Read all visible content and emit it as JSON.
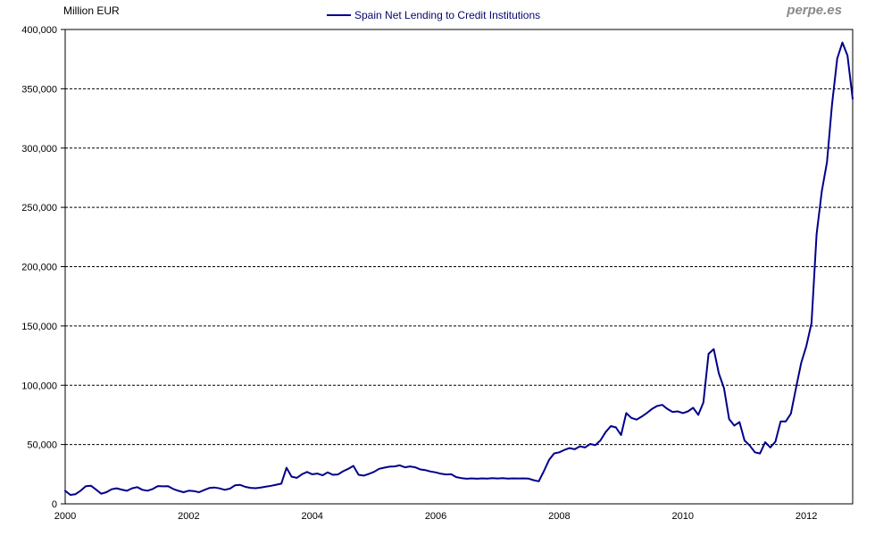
{
  "header": {
    "y_axis_title": "Million EUR",
    "legend_label": "Spain Net Lending to Credit Institutions",
    "watermark": "perpe.es"
  },
  "colors": {
    "line": "#00008B",
    "legend_text": "#06066E",
    "watermark_gray": "#8A8A8A",
    "axis_black": "#000000"
  },
  "chart_data": {
    "type": "line",
    "title": "Spain Net Lending to Credit Institutions",
    "ylabel": "Million EUR",
    "ylim": [
      0,
      400000
    ],
    "y_tick_interval": 50000,
    "y_tick_labels": [
      "0",
      "50,000",
      "100,000",
      "150,000",
      "200,000",
      "250,000",
      "300,000",
      "350,000",
      "400,000"
    ],
    "x_tick_labels": [
      "2000",
      "2002",
      "2004",
      "2006",
      "2008",
      "2010",
      "2012"
    ],
    "x_tick_interval_months": 24,
    "frequency": "monthly",
    "x_range": [
      "2000-01",
      "2012-10"
    ],
    "grid": "horizontal-dashed",
    "legend_position": "top-center",
    "line_color": "#00008B",
    "series": [
      {
        "name": "Spain Net Lending to Credit Institutions",
        "values": [
          11000,
          7500,
          8100,
          11100,
          14900,
          15300,
          12000,
          8500,
          9800,
          12300,
          13100,
          12000,
          11000,
          13100,
          14100,
          11800,
          11100,
          12500,
          15000,
          14800,
          14900,
          12500,
          11000,
          9800,
          11100,
          10800,
          9800,
          11600,
          13300,
          13800,
          13000,
          11800,
          12800,
          15600,
          16000,
          14300,
          13500,
          13200,
          13800,
          14500,
          15200,
          16100,
          17000,
          30400,
          22900,
          21900,
          24900,
          26900,
          24900,
          25500,
          24000,
          26500,
          24500,
          24800,
          27500,
          29500,
          32000,
          24500,
          23800,
          25200,
          27000,
          29500,
          30500,
          31300,
          31600,
          32500,
          30800,
          31600,
          30800,
          29000,
          28400,
          27300,
          26500,
          25400,
          24800,
          24900,
          22500,
          21700,
          21200,
          21500,
          21200,
          21500,
          21300,
          21600,
          21400,
          21600,
          21300,
          21500,
          21400,
          21500,
          21300,
          20000,
          19000,
          27500,
          37000,
          42500,
          43500,
          45500,
          47000,
          46000,
          48500,
          47500,
          50500,
          49500,
          53500,
          60500,
          65500,
          64500,
          58000,
          76500,
          72500,
          71000,
          73500,
          76500,
          80000,
          82500,
          83500,
          80000,
          77500,
          78000,
          76500,
          78000,
          81000,
          75000,
          85500,
          126500,
          130500,
          110000,
          97500,
          71500,
          66000,
          69000,
          53400,
          49200,
          43500,
          42500,
          52000,
          47500,
          52500,
          69500,
          69500,
          76000,
          98000,
          119000,
          133000,
          152500,
          227500,
          263500,
          288000,
          337000,
          375500,
          389000,
          378000,
          341500
        ]
      }
    ]
  }
}
